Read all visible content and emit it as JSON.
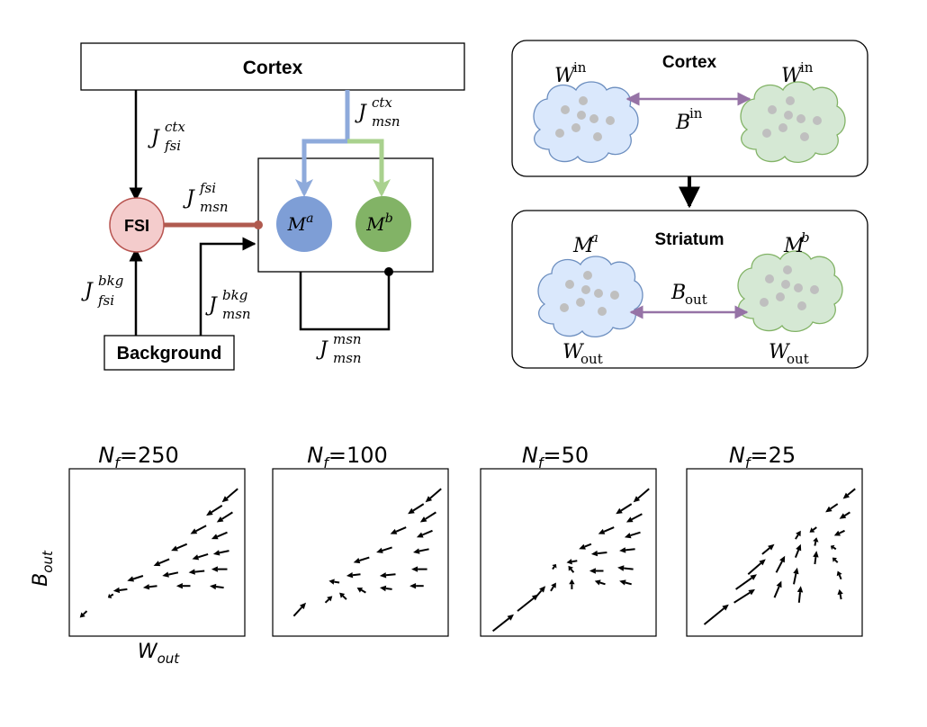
{
  "circuit": {
    "cortex_label": "Cortex",
    "background_label": "Background",
    "fsi_label": "FSI",
    "msn_a": {
      "base": "M",
      "sup": "a"
    },
    "msn_b": {
      "base": "M",
      "sup": "b"
    },
    "j_fsi_ctx": {
      "base": "J",
      "sup": "ctx",
      "sub": "fsi"
    },
    "j_msn_ctx": {
      "base": "J",
      "sup": "ctx",
      "sub": "msn"
    },
    "j_msn_fsi": {
      "base": "J",
      "sup": "fsi",
      "sub": "msn"
    },
    "j_fsi_bkg": {
      "base": "J",
      "sup": "bkg",
      "sub": "fsi"
    },
    "j_msn_bkg": {
      "base": "J",
      "sup": "bkg",
      "sub": "msn"
    },
    "j_msn_msn": {
      "base": "J",
      "sup": "msn",
      "sub": "msn"
    }
  },
  "populations": {
    "cortex_title": "Cortex",
    "striatum_title": "Striatum",
    "w_in_left": {
      "base": "W",
      "sup": "in"
    },
    "w_in_right": {
      "base": "W",
      "sup": "in"
    },
    "b_in": {
      "base": "B",
      "sup": "in"
    },
    "m_a": {
      "base": "M",
      "sup": "a"
    },
    "m_b": {
      "base": "M",
      "sup": "b"
    },
    "b_out": {
      "base": "B",
      "sub": "out"
    },
    "w_out_left": {
      "base": "W",
      "sub": "out"
    },
    "w_out_right": {
      "base": "W",
      "sub": "out"
    }
  },
  "colors": {
    "fsi_fill": "#f4cccc",
    "fsi_stroke": "#b85450",
    "fsi_link": "#b05a4f",
    "msn_a_fill": "#7e9ed6",
    "msn_b_fill": "#82b366",
    "ctx_blue_line": "#8eaadb",
    "ctx_green_line": "#a9d18e",
    "cloud_blue_fill": "#dae8fc",
    "cloud_blue_stroke": "#6c8ebf",
    "cloud_green_fill": "#d5e8d4",
    "cloud_green_stroke": "#82b366",
    "dot": "#bfbfbf",
    "purple_arrow": "#9673a6"
  },
  "quiver_panels": [
    {
      "title_base": "N",
      "title_sub": "f",
      "title_value": "=250"
    },
    {
      "title_base": "N",
      "title_sub": "f",
      "title_value": "=100"
    },
    {
      "title_base": "N",
      "title_sub": "f",
      "title_value": "=50"
    },
    {
      "title_base": "N",
      "title_sub": "f",
      "title_value": "=25"
    }
  ],
  "quiver_axes": {
    "ylabel_base": "B",
    "ylabel_sub": "out",
    "xlabel_base": "W",
    "xlabel_sub": "out"
  },
  "chart_data": [
    {
      "type": "quiver",
      "title": "Nf=250",
      "xlabel": "Wout",
      "ylabel": "Bout",
      "vectors": [
        [
          0.96,
          0.88,
          -0.09,
          -0.08
        ],
        [
          0.87,
          0.78,
          -0.09,
          -0.06
        ],
        [
          0.93,
          0.74,
          -0.09,
          -0.06
        ],
        [
          0.78,
          0.66,
          -0.09,
          -0.05
        ],
        [
          0.9,
          0.62,
          -0.09,
          -0.04
        ],
        [
          0.67,
          0.55,
          -0.09,
          -0.04
        ],
        [
          0.91,
          0.51,
          -0.09,
          -0.02
        ],
        [
          0.79,
          0.49,
          -0.09,
          -0.03
        ],
        [
          0.57,
          0.46,
          -0.09,
          -0.04
        ],
        [
          0.9,
          0.4,
          -0.09,
          0.0
        ],
        [
          0.77,
          0.39,
          -0.09,
          -0.01
        ],
        [
          0.62,
          0.38,
          -0.09,
          -0.02
        ],
        [
          0.42,
          0.36,
          -0.09,
          -0.03
        ],
        [
          0.88,
          0.29,
          -0.08,
          0.01
        ],
        [
          0.69,
          0.3,
          -0.08,
          0.0
        ],
        [
          0.5,
          0.3,
          -0.08,
          -0.01
        ],
        [
          0.33,
          0.28,
          -0.08,
          -0.01
        ],
        [
          0.25,
          0.25,
          -0.03,
          -0.02
        ],
        [
          0.1,
          0.15,
          -0.04,
          -0.04
        ]
      ]
    },
    {
      "type": "quiver",
      "title": "Nf=100",
      "xlabel": "Wout",
      "ylabel": "Bout",
      "vectors": [
        [
          0.96,
          0.88,
          -0.09,
          -0.08
        ],
        [
          0.86,
          0.79,
          -0.09,
          -0.06
        ],
        [
          0.93,
          0.74,
          -0.09,
          -0.06
        ],
        [
          0.76,
          0.65,
          -0.09,
          -0.04
        ],
        [
          0.91,
          0.63,
          -0.09,
          -0.04
        ],
        [
          0.89,
          0.52,
          -0.09,
          -0.02
        ],
        [
          0.68,
          0.53,
          -0.09,
          -0.03
        ],
        [
          0.55,
          0.47,
          -0.09,
          -0.03
        ],
        [
          0.88,
          0.4,
          -0.09,
          0.0
        ],
        [
          0.7,
          0.37,
          -0.09,
          -0.01
        ],
        [
          0.5,
          0.37,
          -0.08,
          -0.01
        ],
        [
          0.38,
          0.32,
          -0.06,
          0.01
        ],
        [
          0.86,
          0.3,
          -0.08,
          0.0
        ],
        [
          0.68,
          0.28,
          -0.07,
          0.01
        ],
        [
          0.53,
          0.26,
          -0.05,
          0.03
        ],
        [
          0.42,
          0.22,
          -0.04,
          0.04
        ],
        [
          0.3,
          0.2,
          0.04,
          0.04
        ],
        [
          0.12,
          0.12,
          0.07,
          0.08
        ]
      ]
    },
    {
      "type": "quiver",
      "title": "Nf=50",
      "xlabel": "Wout",
      "ylabel": "Bout",
      "vectors": [
        [
          0.96,
          0.88,
          -0.09,
          -0.08
        ],
        [
          0.86,
          0.79,
          -0.09,
          -0.06
        ],
        [
          0.92,
          0.73,
          -0.09,
          -0.05
        ],
        [
          0.76,
          0.65,
          -0.09,
          -0.04
        ],
        [
          0.91,
          0.62,
          -0.09,
          -0.03
        ],
        [
          0.63,
          0.55,
          -0.07,
          -0.03
        ],
        [
          0.88,
          0.52,
          -0.09,
          -0.01
        ],
        [
          0.72,
          0.5,
          -0.09,
          -0.01
        ],
        [
          0.55,
          0.45,
          -0.06,
          -0.01
        ],
        [
          0.87,
          0.4,
          -0.09,
          0.01
        ],
        [
          0.7,
          0.39,
          -0.08,
          0.0
        ],
        [
          0.53,
          0.38,
          -0.03,
          0.04
        ],
        [
          0.41,
          0.4,
          0.02,
          0.03
        ],
        [
          0.86,
          0.31,
          -0.07,
          0.02
        ],
        [
          0.71,
          0.31,
          -0.06,
          0.02
        ],
        [
          0.52,
          0.28,
          0.0,
          0.06
        ],
        [
          0.4,
          0.27,
          0.03,
          0.05
        ],
        [
          0.32,
          0.24,
          0.05,
          0.06
        ],
        [
          0.21,
          0.15,
          0.12,
          0.1
        ],
        [
          0.07,
          0.03,
          0.12,
          0.1
        ]
      ]
    },
    {
      "type": "quiver",
      "title": "Nf=25",
      "xlabel": "Wout",
      "ylabel": "Bout",
      "vectors": [
        [
          0.96,
          0.88,
          -0.07,
          -0.06
        ],
        [
          0.86,
          0.79,
          -0.07,
          -0.05
        ],
        [
          0.93,
          0.74,
          -0.06,
          -0.04
        ],
        [
          0.74,
          0.65,
          -0.04,
          -0.03
        ],
        [
          0.9,
          0.63,
          -0.06,
          -0.03
        ],
        [
          0.62,
          0.58,
          0.03,
          0.05
        ],
        [
          0.73,
          0.54,
          0.01,
          0.05
        ],
        [
          0.85,
          0.52,
          -0.03,
          0.02
        ],
        [
          0.43,
          0.49,
          0.07,
          0.06
        ],
        [
          0.62,
          0.47,
          0.03,
          0.08
        ],
        [
          0.73,
          0.43,
          0.01,
          0.08
        ],
        [
          0.86,
          0.44,
          -0.03,
          0.03
        ],
        [
          0.35,
          0.37,
          0.1,
          0.09
        ],
        [
          0.51,
          0.38,
          0.05,
          0.1
        ],
        [
          0.61,
          0.31,
          0.02,
          0.1
        ],
        [
          0.88,
          0.34,
          -0.02,
          0.05
        ],
        [
          0.28,
          0.28,
          0.12,
          0.09
        ],
        [
          0.5,
          0.23,
          0.04,
          0.1
        ],
        [
          0.64,
          0.2,
          0.01,
          0.1
        ],
        [
          0.88,
          0.22,
          -0.01,
          0.06
        ],
        [
          0.1,
          0.07,
          0.14,
          0.12
        ],
        [
          0.27,
          0.2,
          0.12,
          0.08
        ]
      ]
    }
  ]
}
